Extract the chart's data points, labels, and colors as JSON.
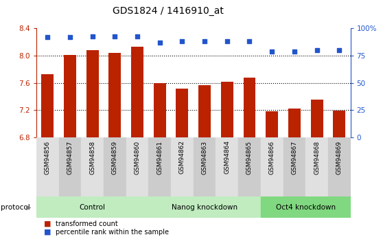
{
  "title": "GDS1824 / 1416910_at",
  "samples": [
    "GSM94856",
    "GSM94857",
    "GSM94858",
    "GSM94859",
    "GSM94860",
    "GSM94861",
    "GSM94862",
    "GSM94863",
    "GSM94864",
    "GSM94865",
    "GSM94866",
    "GSM94867",
    "GSM94868",
    "GSM94869"
  ],
  "transformed_count": [
    7.73,
    8.01,
    8.08,
    8.04,
    8.13,
    7.6,
    7.52,
    7.57,
    7.62,
    7.68,
    7.18,
    7.22,
    7.36,
    7.19
  ],
  "percentile_rank": [
    92,
    92,
    93,
    93,
    93,
    87,
    88,
    88,
    88,
    88,
    79,
    79,
    80,
    80
  ],
  "ylim_left": [
    6.8,
    8.4
  ],
  "ylim_right": [
    0,
    100
  ],
  "yticks_left": [
    6.8,
    7.2,
    7.6,
    8.0,
    8.4
  ],
  "yticks_right": [
    0,
    25,
    50,
    75,
    100
  ],
  "bar_color": "#bb2200",
  "dot_color": "#2255cc",
  "bar_width": 0.55,
  "protocol_groups": [
    {
      "label": "Control",
      "start": 0,
      "end": 5,
      "color": "#c0ecc0"
    },
    {
      "label": "Nanog knockdown",
      "start": 5,
      "end": 10,
      "color": "#c0ecc0"
    },
    {
      "label": "Oct4 knockdown",
      "start": 10,
      "end": 14,
      "color": "#80d880"
    }
  ],
  "col_bg_even": "#e0e0e0",
  "col_bg_odd": "#cccccc",
  "plot_bg": "#ffffff",
  "title_fontsize": 10,
  "legend_items": [
    {
      "label": "transformed count",
      "color": "#bb2200"
    },
    {
      "label": "percentile rank within the sample",
      "color": "#2255cc"
    }
  ],
  "protocol_label": "protocol"
}
